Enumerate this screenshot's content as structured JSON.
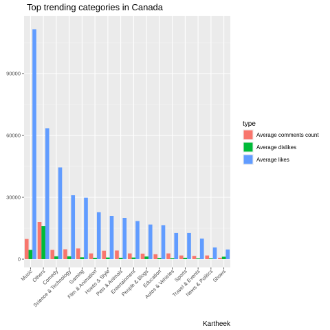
{
  "chart_data": {
    "type": "bar",
    "title": "Top trending categories in Canada",
    "caption": "Kartheek",
    "xlabel": "",
    "ylabel": "",
    "legend_title": "type",
    "legend_position": "right",
    "grid": true,
    "ylim": [
      -4000,
      118000
    ],
    "yticks": [
      0,
      30000,
      60000,
      90000
    ],
    "ytick_labels": [
      "0",
      "30000",
      "60000",
      "90000"
    ],
    "categories": [
      "Music",
      "Others",
      "Comedy",
      "Science & Technology",
      "Gaming",
      "Film & Animation",
      "Howto & Style",
      "Pets & Animals",
      "Entertainment",
      "People & Blogs",
      "Education",
      "Autos & Vehicles",
      "Sports",
      "Travel & Events",
      "News & Politics",
      "Shows"
    ],
    "series": [
      {
        "name": "Average comments count",
        "color": "#F8766D",
        "values": [
          9800,
          18000,
          4500,
          4800,
          5200,
          2800,
          4100,
          4200,
          2800,
          2700,
          2400,
          2800,
          1800,
          1600,
          1800,
          700
        ]
      },
      {
        "name": "Average dislikes",
        "color": "#00BA38",
        "values": [
          4500,
          16000,
          1400,
          1400,
          900,
          700,
          800,
          700,
          800,
          1300,
          600,
          500,
          700,
          400,
          400,
          1200
        ]
      },
      {
        "name": "Average likes",
        "color": "#619CFF",
        "values": [
          111500,
          63500,
          44500,
          31000,
          29800,
          22800,
          21000,
          20000,
          18500,
          16800,
          16500,
          12700,
          12700,
          10000,
          5700,
          4700
        ]
      }
    ]
  }
}
